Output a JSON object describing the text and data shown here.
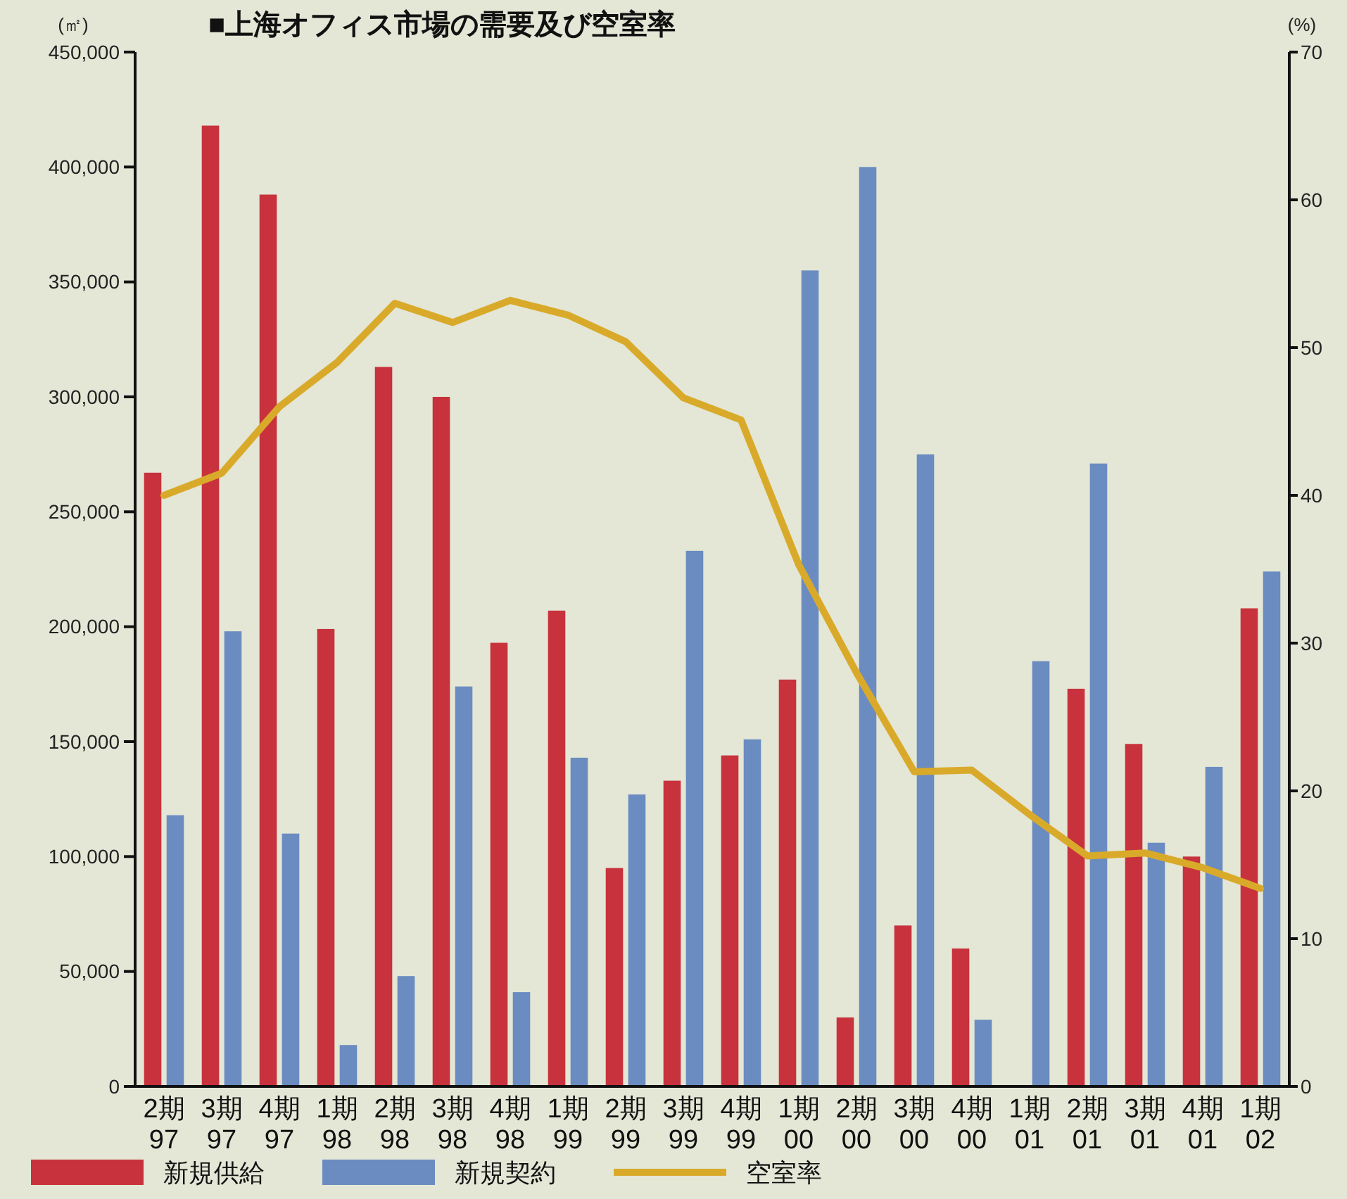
{
  "chart_data": {
    "type": "bar",
    "title": "■上海オフィス市場の需要及び空室率",
    "ylabel": "(㎡)",
    "y2label": "(%)",
    "categories": [
      "2期 97",
      "3期 97",
      "4期 97",
      "1期 98",
      "2期 98",
      "3期 98",
      "4期 98",
      "1期 99",
      "2期 99",
      "3期 99",
      "4期 99",
      "1期 00",
      "2期 00",
      "3期 00",
      "4期 00",
      "1期 01",
      "2期 01",
      "3期 01",
      "4期 01",
      "1期 02"
    ],
    "series": [
      {
        "name": "新規供給",
        "color": "#c8323c",
        "values": [
          267000,
          418000,
          388000,
          199000,
          313000,
          300000,
          193000,
          207000,
          95000,
          133000,
          144000,
          177000,
          30000,
          70000,
          60000,
          null,
          173000,
          149000,
          100000,
          208000
        ]
      },
      {
        "name": "新規契約",
        "color": "#6a8cc0",
        "values": [
          118000,
          198000,
          110000,
          18000,
          48000,
          174000,
          41000,
          143000,
          127000,
          233000,
          151000,
          355000,
          400000,
          275000,
          29000,
          185000,
          271000,
          106000,
          139000,
          224000
        ]
      },
      {
        "name": "空室率",
        "type": "line",
        "axis": "y2",
        "color": "#d9aa2a",
        "values": [
          40.0,
          41.5,
          46.0,
          49.0,
          53.0,
          51.7,
          53.2,
          52.2,
          50.4,
          46.6,
          45.1,
          35.3,
          28.0,
          21.3,
          21.4,
          18.4,
          15.6,
          15.8,
          14.8,
          13.4
        ]
      }
    ],
    "ylim": [
      0,
      450000
    ],
    "yticks": [
      {
        "value": 0,
        "label": "0"
      },
      {
        "value": 50000,
        "label": "50,000"
      },
      {
        "value": 100000,
        "label": "100,000"
      },
      {
        "value": 150000,
        "label": "150,000"
      },
      {
        "value": 200000,
        "label": "200,000"
      },
      {
        "value": 250000,
        "label": "250,000"
      },
      {
        "value": 300000,
        "label": "300,000"
      },
      {
        "value": 350000,
        "label": "350,000"
      },
      {
        "value": 400000,
        "label": "400,000"
      },
      {
        "value": 450000,
        "label": "450,000"
      }
    ],
    "y2lim": [
      0,
      70
    ],
    "y2ticks": [
      0,
      10,
      20,
      30,
      40,
      50,
      60,
      70
    ],
    "legend": "bottom",
    "grid": false,
    "marker": "none",
    "line_style": "solid"
  }
}
